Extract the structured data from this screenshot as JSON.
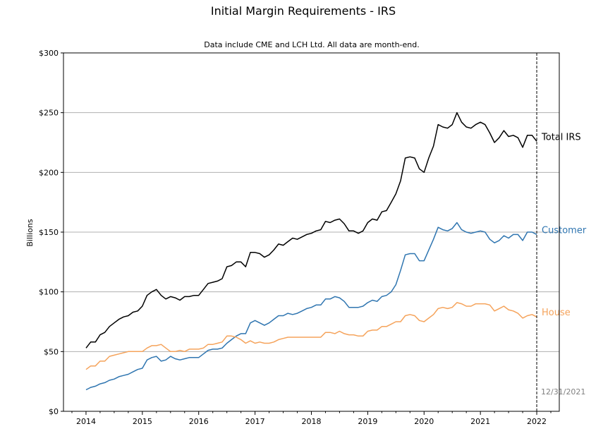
{
  "chart_data": {
    "type": "line",
    "title": "Initial Margin Requirements - IRS",
    "subtitle": "Data include CME and LCH Ltd. All data are month-end.",
    "xlabel": "",
    "ylabel": "Billions",
    "x_ticks": [
      "2014",
      "2015",
      "2016",
      "2017",
      "2018",
      "2019",
      "2020",
      "2021",
      "2022"
    ],
    "y_ticks": [
      "$0",
      "$50",
      "$100",
      "$150",
      "$200",
      "$250",
      "$300"
    ],
    "xlim": [
      2013.6,
      2022.4
    ],
    "ylim": [
      0,
      300
    ],
    "grid": "horizontal",
    "start": "2014-01",
    "frequency": "monthly",
    "marker_label": "12/31/2021",
    "marker_x": 2022.0,
    "colors": {
      "total": "#000000",
      "customer": "#2f75b0",
      "house": "#f5a35b",
      "marker": "#000000",
      "annotation": "#808080",
      "grid": "#b0b0b0"
    },
    "series": [
      {
        "name": "Total IRS",
        "color": "#000000",
        "values": [
          53,
          58,
          58,
          64,
          66,
          71,
          74,
          77,
          79,
          80,
          83,
          84,
          88,
          97,
          100,
          102,
          97,
          94,
          96,
          95,
          93,
          96,
          96,
          97,
          97,
          102,
          107,
          108,
          109,
          111,
          121,
          122,
          125,
          125,
          121,
          133,
          133,
          132,
          129,
          131,
          135,
          140,
          139,
          142,
          145,
          144,
          146,
          148,
          149,
          151,
          152,
          159,
          158,
          160,
          161,
          157,
          151,
          151,
          149,
          151,
          158,
          161,
          160,
          167,
          168,
          175,
          182,
          193,
          212,
          213,
          212,
          203,
          200,
          212,
          222,
          240,
          238,
          237,
          240,
          250,
          242,
          238,
          237,
          240,
          242,
          240,
          233,
          225,
          229,
          235,
          230,
          231,
          229,
          221,
          231,
          231,
          226
        ]
      },
      {
        "name": "Customer",
        "color": "#2f75b0",
        "values": [
          18,
          20,
          21,
          23,
          24,
          26,
          27,
          29,
          30,
          31,
          33,
          35,
          36,
          43,
          45,
          46,
          42,
          43,
          46,
          44,
          43,
          44,
          45,
          45,
          45,
          48,
          51,
          52,
          52,
          53,
          57,
          60,
          63,
          65,
          65,
          74,
          76,
          74,
          72,
          74,
          77,
          80,
          80,
          82,
          81,
          82,
          84,
          86,
          87,
          89,
          89,
          94,
          94,
          96,
          95,
          92,
          87,
          87,
          87,
          88,
          91,
          93,
          92,
          96,
          97,
          100,
          106,
          118,
          131,
          132,
          132,
          126,
          126,
          135,
          144,
          154,
          152,
          151,
          153,
          158,
          152,
          150,
          149,
          150,
          151,
          150,
          144,
          141,
          143,
          147,
          145,
          148,
          148,
          143,
          150,
          150,
          148
        ]
      },
      {
        "name": "House",
        "color": "#f5a35b",
        "values": [
          35,
          38,
          38,
          42,
          42,
          46,
          47,
          48,
          49,
          50,
          50,
          50,
          50,
          53,
          55,
          55,
          56,
          53,
          50,
          50,
          51,
          50,
          52,
          52,
          52,
          53,
          56,
          56,
          57,
          58,
          63,
          63,
          62,
          60,
          57,
          59,
          57,
          58,
          57,
          57,
          58,
          60,
          61,
          62,
          62,
          62,
          62,
          62,
          62,
          62,
          62,
          66,
          66,
          65,
          67,
          65,
          64,
          64,
          63,
          63,
          67,
          68,
          68,
          71,
          71,
          73,
          75,
          75,
          80,
          81,
          80,
          76,
          75,
          78,
          81,
          86,
          87,
          86,
          87,
          91,
          90,
          88,
          88,
          90,
          90,
          90,
          89,
          84,
          86,
          88,
          85,
          84,
          82,
          78,
          80,
          81,
          79
        ]
      }
    ]
  }
}
